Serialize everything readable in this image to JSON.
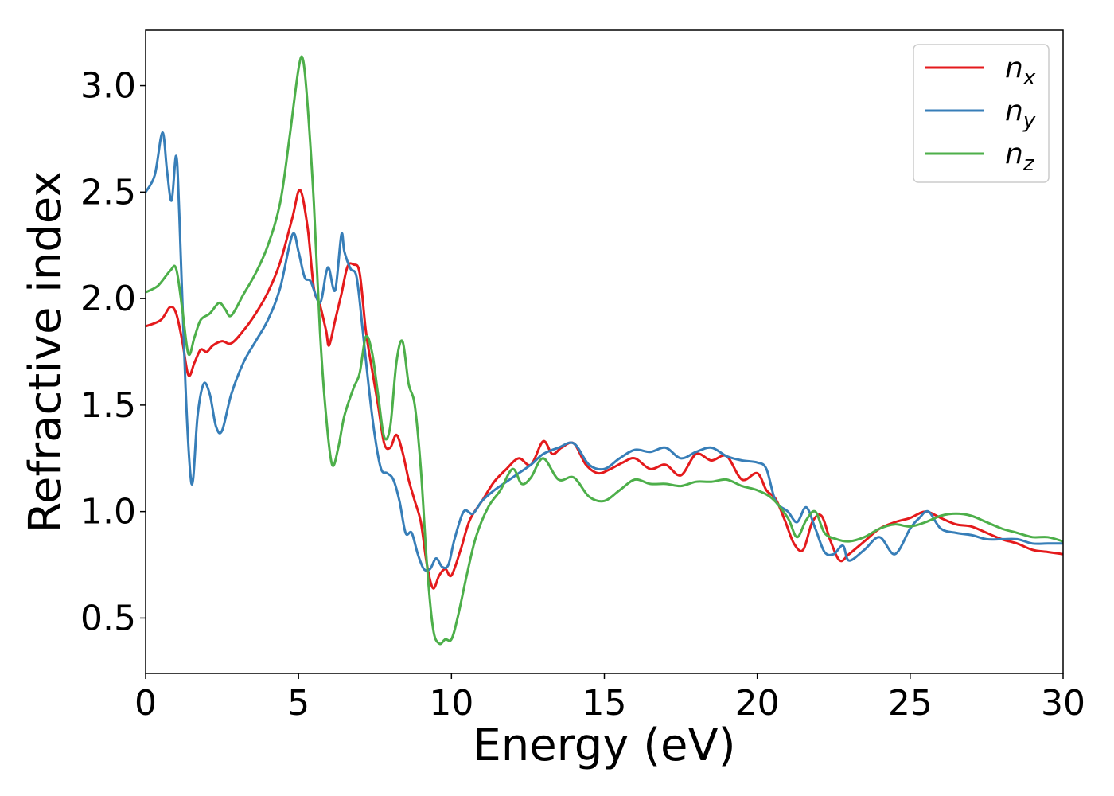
{
  "chart_data": {
    "type": "line",
    "title": "",
    "xlabel": "Energy (eV)",
    "ylabel": "Refractive index",
    "xlim": [
      0,
      30
    ],
    "ylim": [
      0.24,
      3.26
    ],
    "xticks": [
      0,
      5,
      10,
      15,
      20,
      25,
      30
    ],
    "xtick_labels": [
      "0",
      "5",
      "10",
      "15",
      "20",
      "25",
      "30"
    ],
    "yticks": [
      0.5,
      1.0,
      1.5,
      2.0,
      2.5,
      3.0
    ],
    "ytick_labels": [
      "0.5",
      "1.0",
      "1.5",
      "2.0",
      "2.5",
      "3.0"
    ],
    "grid": false,
    "legend": {
      "placement": "top-right"
    },
    "series": [
      {
        "name": "n",
        "subscript": "x",
        "color": "#e41a1c",
        "x": [
          0,
          0.5,
          0.8,
          1.0,
          1.2,
          1.4,
          1.6,
          1.8,
          2.0,
          2.2,
          2.5,
          2.8,
          3.2,
          3.6,
          4.0,
          4.4,
          4.8,
          5.05,
          5.3,
          5.5,
          5.7,
          5.9,
          6.0,
          6.2,
          6.4,
          6.6,
          6.8,
          7.0,
          7.2,
          7.4,
          7.6,
          7.8,
          8.0,
          8.2,
          8.4,
          8.6,
          8.8,
          9.0,
          9.2,
          9.4,
          9.6,
          9.8,
          10.0,
          10.3,
          10.6,
          11.0,
          11.4,
          11.8,
          12.2,
          12.6,
          13.0,
          13.3,
          13.6,
          14.0,
          14.4,
          14.8,
          15.2,
          15.6,
          16.0,
          16.5,
          17.0,
          17.5,
          18.0,
          18.5,
          19.0,
          19.5,
          20.0,
          20.3,
          20.6,
          20.9,
          21.2,
          21.5,
          21.8,
          22.1,
          22.4,
          22.7,
          23.0,
          23.5,
          24.0,
          24.5,
          25.0,
          25.5,
          26.0,
          26.5,
          27.0,
          27.5,
          28.0,
          28.5,
          29.0,
          29.5,
          30.0
        ],
        "y": [
          1.87,
          1.9,
          1.96,
          1.93,
          1.8,
          1.64,
          1.7,
          1.76,
          1.75,
          1.78,
          1.8,
          1.79,
          1.85,
          1.93,
          2.03,
          2.17,
          2.38,
          2.51,
          2.33,
          2.05,
          1.97,
          1.85,
          1.78,
          1.9,
          2.02,
          2.15,
          2.16,
          2.12,
          1.85,
          1.67,
          1.5,
          1.32,
          1.3,
          1.36,
          1.28,
          1.15,
          1.05,
          0.95,
          0.75,
          0.64,
          0.7,
          0.73,
          0.7,
          0.82,
          0.96,
          1.05,
          1.14,
          1.2,
          1.25,
          1.22,
          1.33,
          1.27,
          1.3,
          1.32,
          1.22,
          1.18,
          1.2,
          1.23,
          1.25,
          1.2,
          1.22,
          1.17,
          1.27,
          1.24,
          1.26,
          1.15,
          1.18,
          1.1,
          1.06,
          0.96,
          0.85,
          0.82,
          0.95,
          0.98,
          0.86,
          0.77,
          0.8,
          0.86,
          0.92,
          0.95,
          0.97,
          1.0,
          0.97,
          0.94,
          0.93,
          0.9,
          0.87,
          0.85,
          0.82,
          0.81,
          0.8
        ]
      },
      {
        "name": "n",
        "subscript": "y",
        "color": "#377eb8",
        "x": [
          0,
          0.3,
          0.55,
          0.7,
          0.85,
          1.0,
          1.1,
          1.3,
          1.45,
          1.55,
          1.7,
          1.9,
          2.1,
          2.3,
          2.5,
          2.8,
          3.2,
          3.6,
          4.0,
          4.4,
          4.8,
          5.0,
          5.2,
          5.4,
          5.7,
          5.9,
          6.0,
          6.2,
          6.4,
          6.5,
          6.7,
          6.9,
          7.1,
          7.3,
          7.5,
          7.7,
          7.9,
          8.1,
          8.3,
          8.5,
          8.7,
          8.9,
          9.1,
          9.3,
          9.5,
          9.7,
          9.9,
          10.1,
          10.4,
          10.7,
          11.0,
          11.4,
          11.8,
          12.2,
          12.6,
          13.0,
          13.5,
          14.0,
          14.5,
          15.0,
          15.5,
          16.0,
          16.5,
          17.0,
          17.5,
          18.0,
          18.5,
          19.0,
          19.5,
          20.0,
          20.3,
          20.6,
          21.0,
          21.3,
          21.6,
          21.9,
          22.2,
          22.5,
          22.8,
          23.0,
          23.5,
          24.0,
          24.5,
          25.0,
          25.3,
          25.6,
          26.0,
          26.5,
          27.0,
          27.5,
          28.0,
          28.5,
          29.0,
          29.5,
          30.0
        ],
        "y": [
          2.5,
          2.58,
          2.78,
          2.6,
          2.46,
          2.67,
          2.4,
          1.6,
          1.2,
          1.15,
          1.45,
          1.6,
          1.55,
          1.4,
          1.38,
          1.55,
          1.7,
          1.8,
          1.9,
          2.05,
          2.3,
          2.22,
          2.1,
          2.08,
          1.98,
          2.12,
          2.14,
          2.04,
          2.3,
          2.22,
          2.14,
          2.1,
          1.85,
          1.58,
          1.35,
          1.2,
          1.18,
          1.15,
          1.05,
          0.9,
          0.9,
          0.8,
          0.73,
          0.73,
          0.78,
          0.74,
          0.75,
          0.87,
          1.0,
          0.99,
          1.05,
          1.1,
          1.14,
          1.18,
          1.22,
          1.27,
          1.3,
          1.32,
          1.22,
          1.2,
          1.25,
          1.29,
          1.28,
          1.3,
          1.25,
          1.28,
          1.3,
          1.26,
          1.24,
          1.23,
          1.2,
          1.05,
          1.0,
          0.95,
          1.02,
          0.92,
          0.81,
          0.8,
          0.84,
          0.77,
          0.82,
          0.88,
          0.8,
          0.92,
          0.97,
          1.0,
          0.92,
          0.9,
          0.89,
          0.87,
          0.87,
          0.87,
          0.85,
          0.85,
          0.85
        ]
      },
      {
        "name": "n",
        "subscript": "z",
        "color": "#4daf4a",
        "x": [
          0,
          0.4,
          0.8,
          1.0,
          1.2,
          1.4,
          1.6,
          1.8,
          2.1,
          2.4,
          2.6,
          2.8,
          3.2,
          3.6,
          4.0,
          4.4,
          4.7,
          5.0,
          5.15,
          5.3,
          5.5,
          5.7,
          5.9,
          6.1,
          6.3,
          6.5,
          6.8,
          7.0,
          7.2,
          7.4,
          7.6,
          7.8,
          8.0,
          8.2,
          8.4,
          8.6,
          8.8,
          9.0,
          9.2,
          9.4,
          9.6,
          9.8,
          10.0,
          10.2,
          10.5,
          10.8,
          11.2,
          11.6,
          12.0,
          12.3,
          12.6,
          13.0,
          13.5,
          14.0,
          14.5,
          15.0,
          15.5,
          16.0,
          16.5,
          17.0,
          17.5,
          18.0,
          18.5,
          19.0,
          19.5,
          20.0,
          20.5,
          21.0,
          21.3,
          21.6,
          21.9,
          22.2,
          22.6,
          23.0,
          23.5,
          24.0,
          24.5,
          25.0,
          25.5,
          26.0,
          26.5,
          27.0,
          27.5,
          28.0,
          28.5,
          29.0,
          29.5,
          30.0
        ],
        "y": [
          2.03,
          2.06,
          2.13,
          2.14,
          1.95,
          1.74,
          1.82,
          1.9,
          1.93,
          1.98,
          1.95,
          1.92,
          2.02,
          2.12,
          2.25,
          2.45,
          2.75,
          3.08,
          3.12,
          2.9,
          2.45,
          1.85,
          1.45,
          1.22,
          1.3,
          1.45,
          1.58,
          1.65,
          1.82,
          1.75,
          1.55,
          1.35,
          1.4,
          1.7,
          1.8,
          1.6,
          1.5,
          1.2,
          0.75,
          0.45,
          0.38,
          0.4,
          0.4,
          0.5,
          0.7,
          0.88,
          1.02,
          1.1,
          1.2,
          1.13,
          1.16,
          1.25,
          1.15,
          1.16,
          1.07,
          1.05,
          1.1,
          1.15,
          1.13,
          1.13,
          1.12,
          1.14,
          1.14,
          1.15,
          1.12,
          1.1,
          1.06,
          0.97,
          0.88,
          0.96,
          1.0,
          0.9,
          0.87,
          0.86,
          0.88,
          0.92,
          0.94,
          0.93,
          0.95,
          0.98,
          0.99,
          0.98,
          0.95,
          0.92,
          0.9,
          0.88,
          0.88,
          0.86
        ]
      }
    ]
  }
}
